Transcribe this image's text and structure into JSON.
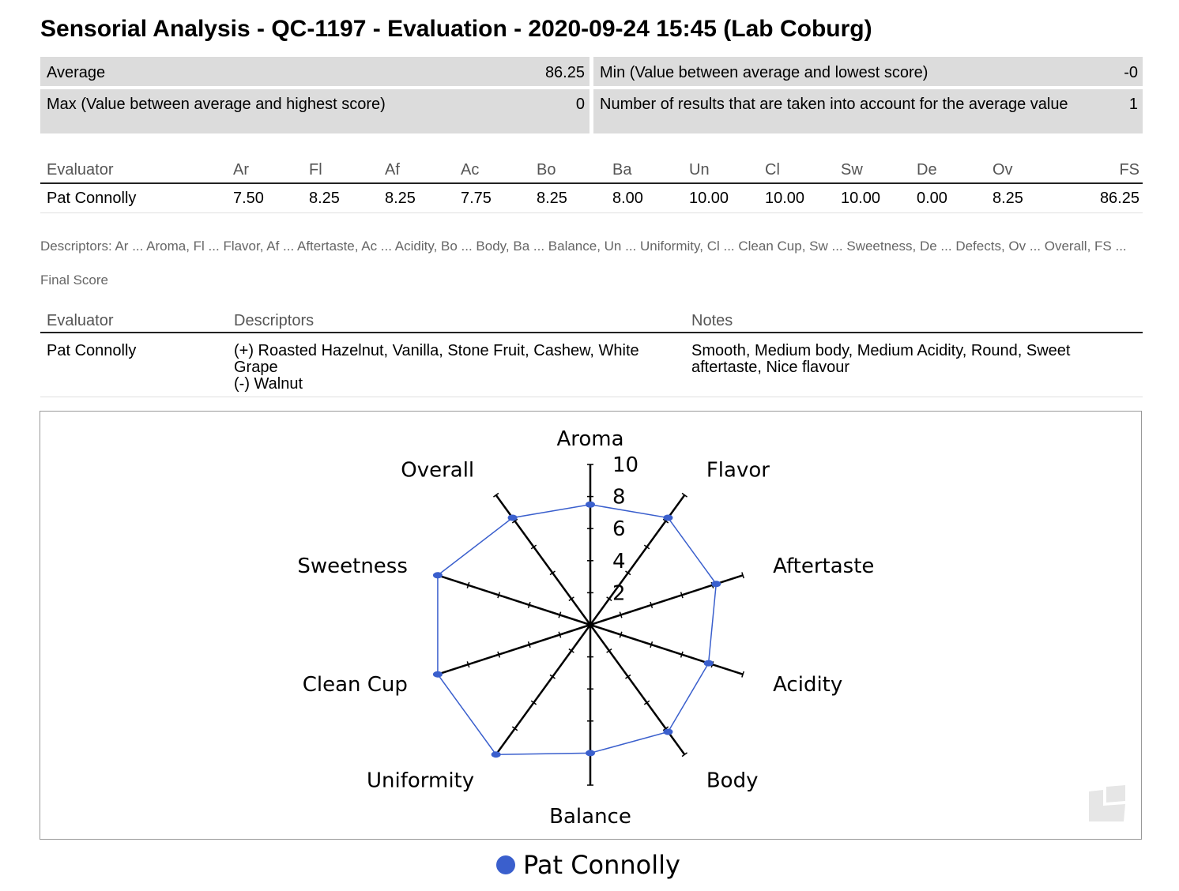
{
  "title": "Sensorial Analysis - QC-1197 - Evaluation - 2020-09-24 15:45 (Lab Coburg)",
  "summary": {
    "average_label": "Average",
    "average_value": "86.25",
    "min_label": "Min (Value between average and lowest score)",
    "min_value": "-0",
    "max_label": "Max (Value between average and highest score)",
    "max_value": "0",
    "count_label": "Number of results that are taken into account for the average value",
    "count_value": "1"
  },
  "scores_table": {
    "headers": [
      "Evaluator",
      "Ar",
      "Fl",
      "Af",
      "Ac",
      "Bo",
      "Ba",
      "Un",
      "Cl",
      "Sw",
      "De",
      "Ov",
      "FS"
    ],
    "rows": [
      [
        "Pat Connolly",
        "7.50",
        "8.25",
        "8.25",
        "7.75",
        "8.25",
        "8.00",
        "10.00",
        "10.00",
        "10.00",
        "0.00",
        "8.25",
        "86.25"
      ]
    ]
  },
  "descriptors_legend": "Descriptors: Ar ... Aroma, Fl ... Flavor, Af ... Aftertaste, Ac ... Acidity, Bo ... Body, Ba ... Balance, Un ... Uniformity, Cl ... Clean Cup, Sw ... Sweetness, De ... Defects, Ov ... Overall, FS ... Final Score",
  "desc_table": {
    "headers": [
      "Evaluator",
      "Descriptors",
      "Notes"
    ],
    "row": {
      "evaluator": "Pat Connolly",
      "positive": "(+) Roasted Hazelnut, Vanilla, Stone Fruit, Cashew, White Grape",
      "negative": "(-) Walnut",
      "notes": "Smooth, Medium body, Medium Acidity, Round, Sweet aftertaste, Nice flavour"
    }
  },
  "chart_data": {
    "type": "radar",
    "axes": [
      "Aroma",
      "Flavor",
      "Aftertaste",
      "Acidity",
      "Body",
      "Balance",
      "Uniformity",
      "Clean Cup",
      "Sweetness",
      "Overall"
    ],
    "range": [
      0,
      10
    ],
    "ticks": [
      2,
      4,
      6,
      8,
      10
    ],
    "series": [
      {
        "name": "Pat Connolly",
        "values": [
          7.5,
          8.25,
          8.25,
          7.75,
          8.25,
          8.0,
          10.0,
          10.0,
          10.0,
          8.25
        ],
        "color": "#3a5fcd"
      }
    ],
    "legend_position": "bottom-center"
  }
}
